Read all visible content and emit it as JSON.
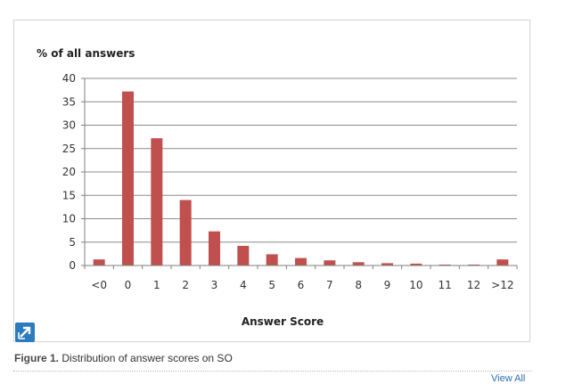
{
  "figure": {
    "label": "Figure 1.",
    "caption": "Distribution of answer scores on SO",
    "view_all": "View All",
    "expand_icon": "expand-arrow-icon"
  },
  "colors": {
    "bar": "#c0504d",
    "axis": "#7f7f7f",
    "grid": "#8c8c8c",
    "expand_button": "#2b7bbf"
  },
  "chart_data": {
    "type": "bar",
    "title": "",
    "ylabel": "% of all answers",
    "xlabel": "Answer Score",
    "categories": [
      "<0",
      "0",
      "1",
      "2",
      "3",
      "4",
      "5",
      "6",
      "7",
      "8",
      "9",
      "10",
      "11",
      "12",
      ">12"
    ],
    "values": [
      1.3,
      37.2,
      27.2,
      14.0,
      7.3,
      4.2,
      2.4,
      1.6,
      1.1,
      0.7,
      0.5,
      0.4,
      0.2,
      0.2,
      1.3
    ],
    "ylim": [
      0,
      40
    ],
    "yticks": [
      "0",
      "5",
      "10",
      "15",
      "20",
      "25",
      "30",
      "35",
      "40"
    ],
    "grid": true,
    "legend": "none"
  }
}
